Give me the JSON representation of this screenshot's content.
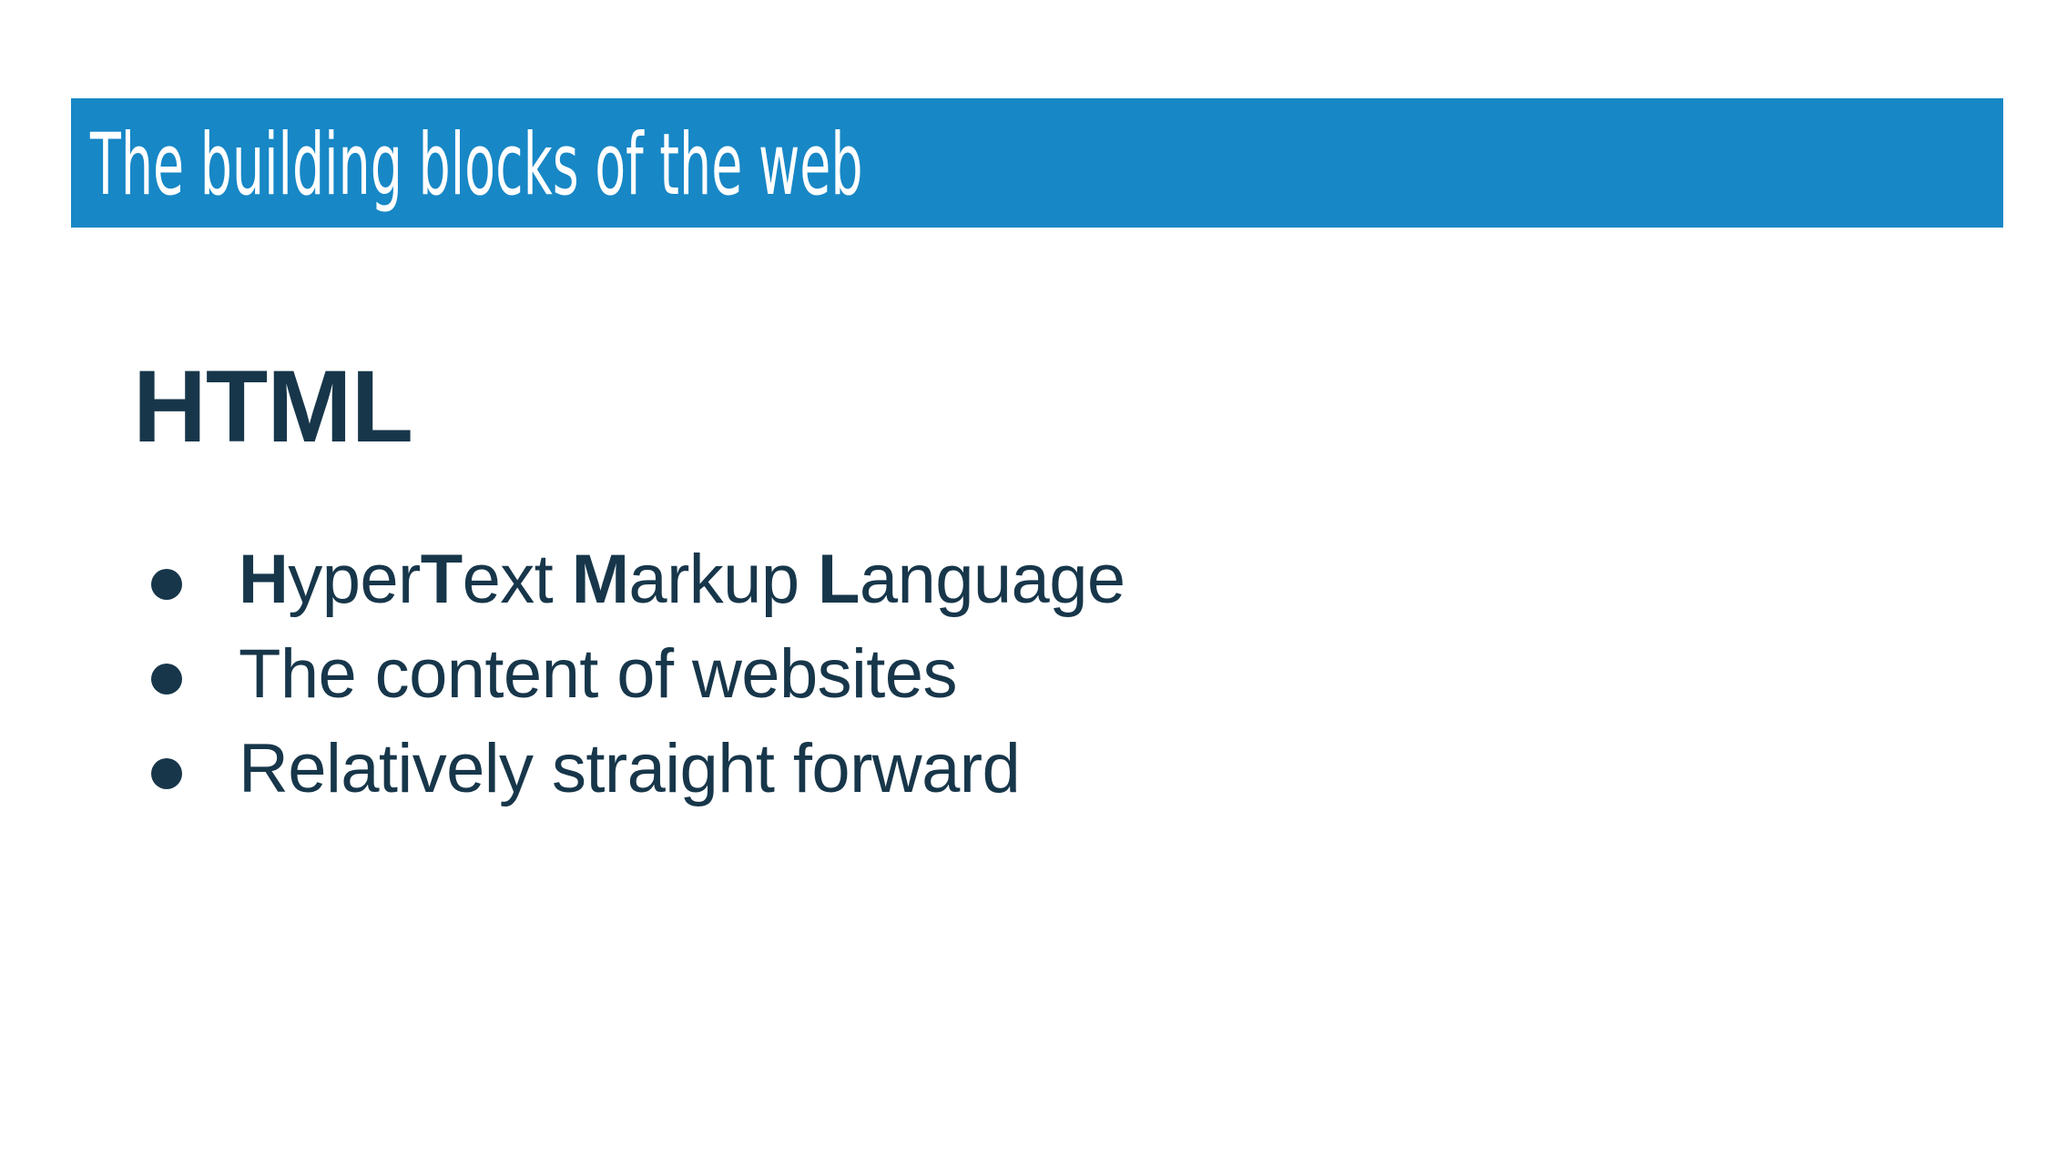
{
  "slide": {
    "title": "The building blocks of the web",
    "heading": "HTML",
    "bullets": [
      {
        "parts": [
          {
            "text": "H",
            "bold": true
          },
          {
            "text": "yper",
            "bold": false
          },
          {
            "text": "T",
            "bold": true
          },
          {
            "text": "ext ",
            "bold": false
          },
          {
            "text": "M",
            "bold": true
          },
          {
            "text": "arkup ",
            "bold": false
          },
          {
            "text": "L",
            "bold": true
          },
          {
            "text": "anguage",
            "bold": false
          }
        ]
      },
      {
        "parts": [
          {
            "text": "The content of websites",
            "bold": false
          }
        ]
      },
      {
        "parts": [
          {
            "text": "Relatively straight forward",
            "bold": false
          }
        ]
      }
    ]
  },
  "colors": {
    "title_bar": "#1787c6",
    "title_text": "#ffffff",
    "body_text": "#17364a",
    "background": "#ffffff"
  }
}
